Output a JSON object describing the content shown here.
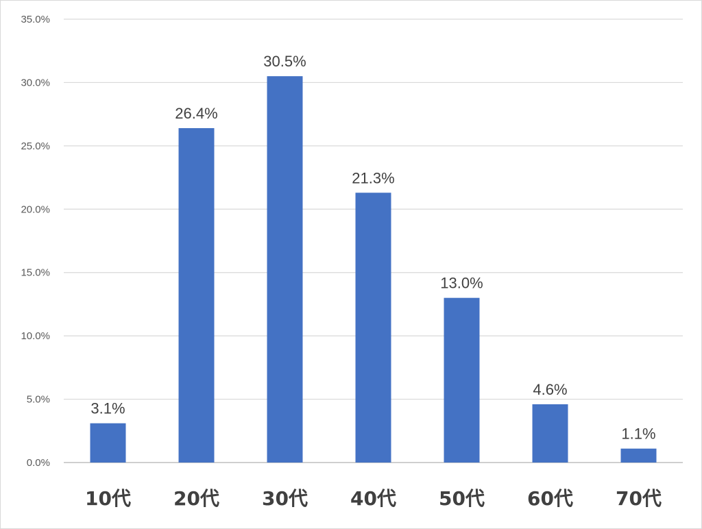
{
  "chart_data": {
    "type": "bar",
    "title": "",
    "xlabel": "",
    "ylabel": "",
    "categories": [
      "10代",
      "20代",
      "30代",
      "40代",
      "50代",
      "60代",
      "70代"
    ],
    "values": [
      3.1,
      26.4,
      30.5,
      21.3,
      13.0,
      4.6,
      1.1
    ],
    "data_labels": [
      "3.1%",
      "26.4%",
      "30.5%",
      "21.3%",
      "13.0%",
      "4.6%",
      "1.1%"
    ],
    "y_ticks": [
      "0.0%",
      "5.0%",
      "10.0%",
      "15.0%",
      "20.0%",
      "25.0%",
      "30.0%",
      "35.0%"
    ],
    "ylim": [
      0,
      35
    ],
    "y_step": 5,
    "grid": true,
    "legend": "none",
    "colors": {
      "bar": "#4472C4",
      "grid": "#d9d9d9",
      "axis": "#bfbfbf"
    }
  }
}
